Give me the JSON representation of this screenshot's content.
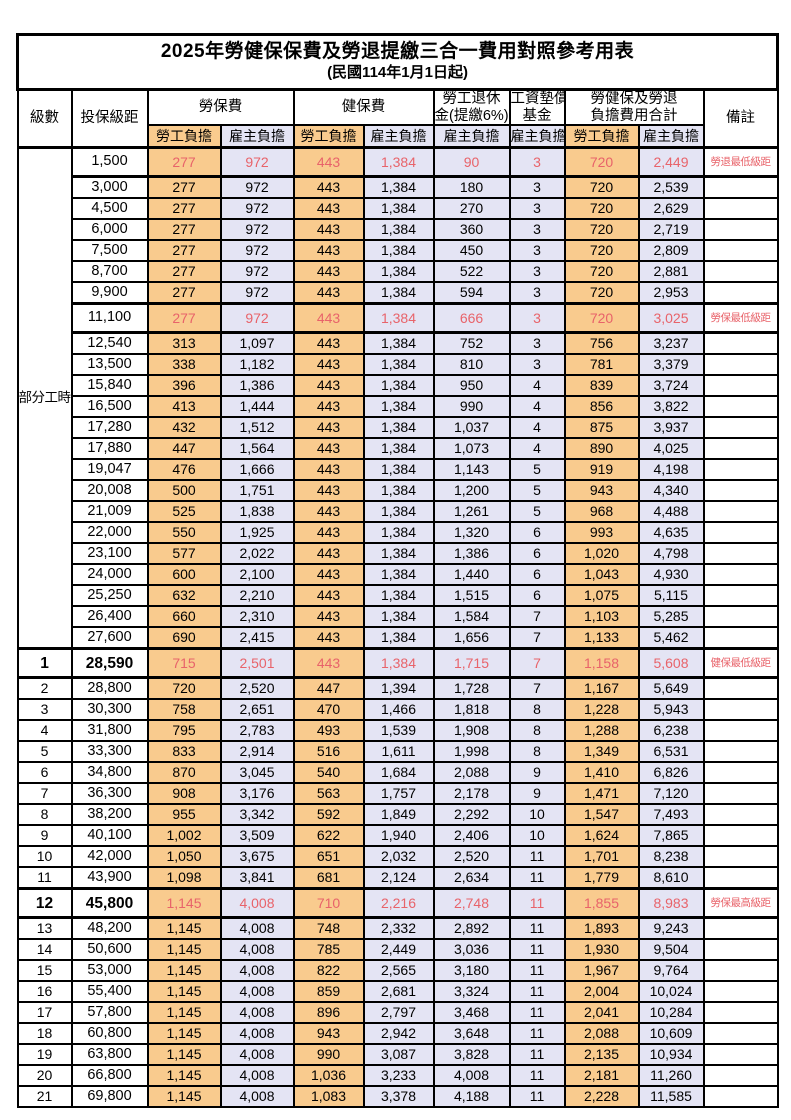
{
  "title": "2025年勞健保保費及勞退提繳三合一費用對照參考用表",
  "subtitle": "(民國114年1月1日起)",
  "columns": {
    "level": "級數",
    "bracket": "投保級距",
    "labor_insurance": "勞保費",
    "health_insurance": "健保費",
    "pension_line1": "勞工退休",
    "pension_line2": "金(提繳6%)",
    "wage_fund_line1": "工資墊償",
    "wage_fund_line2": "基金",
    "total_line1": "勞健保及勞退",
    "total_line2": "負擔費用合計",
    "note": "備註",
    "employee": "勞工負擔",
    "employer": "雇主負擔"
  },
  "part_time_label": "部分工時",
  "part_time_rowspan": 23,
  "colors": {
    "employee_bg": "#F9CB8E",
    "employer_bg": "#E4E4F4",
    "highlight_text": "#E8636A"
  },
  "rows": [
    {
      "level": "",
      "bracket": "1,500",
      "v": [
        "277",
        "972",
        "443",
        "1,384",
        "90",
        "3",
        "720",
        "2,449"
      ],
      "note": "勞退最低級距",
      "hl": true,
      "bold": false
    },
    {
      "level": "",
      "bracket": "3,000",
      "v": [
        "277",
        "972",
        "443",
        "1,384",
        "180",
        "3",
        "720",
        "2,539"
      ],
      "note": "",
      "hl": false,
      "bold": false
    },
    {
      "level": "",
      "bracket": "4,500",
      "v": [
        "277",
        "972",
        "443",
        "1,384",
        "270",
        "3",
        "720",
        "2,629"
      ],
      "note": "",
      "hl": false,
      "bold": false
    },
    {
      "level": "",
      "bracket": "6,000",
      "v": [
        "277",
        "972",
        "443",
        "1,384",
        "360",
        "3",
        "720",
        "2,719"
      ],
      "note": "",
      "hl": false,
      "bold": false
    },
    {
      "level": "",
      "bracket": "7,500",
      "v": [
        "277",
        "972",
        "443",
        "1,384",
        "450",
        "3",
        "720",
        "2,809"
      ],
      "note": "",
      "hl": false,
      "bold": false
    },
    {
      "level": "",
      "bracket": "8,700",
      "v": [
        "277",
        "972",
        "443",
        "1,384",
        "522",
        "3",
        "720",
        "2,881"
      ],
      "note": "",
      "hl": false,
      "bold": false
    },
    {
      "level": "",
      "bracket": "9,900",
      "v": [
        "277",
        "972",
        "443",
        "1,384",
        "594",
        "3",
        "720",
        "2,953"
      ],
      "note": "",
      "hl": false,
      "bold": false
    },
    {
      "level": "",
      "bracket": "11,100",
      "v": [
        "277",
        "972",
        "443",
        "1,384",
        "666",
        "3",
        "720",
        "3,025"
      ],
      "note": "勞保最低級距",
      "hl": true,
      "bold": false
    },
    {
      "level": "",
      "bracket": "12,540",
      "v": [
        "313",
        "1,097",
        "443",
        "1,384",
        "752",
        "3",
        "756",
        "3,237"
      ],
      "note": "",
      "hl": false,
      "bold": false
    },
    {
      "level": "",
      "bracket": "13,500",
      "v": [
        "338",
        "1,182",
        "443",
        "1,384",
        "810",
        "3",
        "781",
        "3,379"
      ],
      "note": "",
      "hl": false,
      "bold": false
    },
    {
      "level": "",
      "bracket": "15,840",
      "v": [
        "396",
        "1,386",
        "443",
        "1,384",
        "950",
        "4",
        "839",
        "3,724"
      ],
      "note": "",
      "hl": false,
      "bold": false
    },
    {
      "level": "",
      "bracket": "16,500",
      "v": [
        "413",
        "1,444",
        "443",
        "1,384",
        "990",
        "4",
        "856",
        "3,822"
      ],
      "note": "",
      "hl": false,
      "bold": false
    },
    {
      "level": "",
      "bracket": "17,280",
      "v": [
        "432",
        "1,512",
        "443",
        "1,384",
        "1,037",
        "4",
        "875",
        "3,937"
      ],
      "note": "",
      "hl": false,
      "bold": false
    },
    {
      "level": "",
      "bracket": "17,880",
      "v": [
        "447",
        "1,564",
        "443",
        "1,384",
        "1,073",
        "4",
        "890",
        "4,025"
      ],
      "note": "",
      "hl": false,
      "bold": false
    },
    {
      "level": "",
      "bracket": "19,047",
      "v": [
        "476",
        "1,666",
        "443",
        "1,384",
        "1,143",
        "5",
        "919",
        "4,198"
      ],
      "note": "",
      "hl": false,
      "bold": false
    },
    {
      "level": "",
      "bracket": "20,008",
      "v": [
        "500",
        "1,751",
        "443",
        "1,384",
        "1,200",
        "5",
        "943",
        "4,340"
      ],
      "note": "",
      "hl": false,
      "bold": false
    },
    {
      "level": "",
      "bracket": "21,009",
      "v": [
        "525",
        "1,838",
        "443",
        "1,384",
        "1,261",
        "5",
        "968",
        "4,488"
      ],
      "note": "",
      "hl": false,
      "bold": false
    },
    {
      "level": "",
      "bracket": "22,000",
      "v": [
        "550",
        "1,925",
        "443",
        "1,384",
        "1,320",
        "6",
        "993",
        "4,635"
      ],
      "note": "",
      "hl": false,
      "bold": false
    },
    {
      "level": "",
      "bracket": "23,100",
      "v": [
        "577",
        "2,022",
        "443",
        "1,384",
        "1,386",
        "6",
        "1,020",
        "4,798"
      ],
      "note": "",
      "hl": false,
      "bold": false
    },
    {
      "level": "",
      "bracket": "24,000",
      "v": [
        "600",
        "2,100",
        "443",
        "1,384",
        "1,440",
        "6",
        "1,043",
        "4,930"
      ],
      "note": "",
      "hl": false,
      "bold": false
    },
    {
      "level": "",
      "bracket": "25,250",
      "v": [
        "632",
        "2,210",
        "443",
        "1,384",
        "1,515",
        "6",
        "1,075",
        "5,115"
      ],
      "note": "",
      "hl": false,
      "bold": false
    },
    {
      "level": "",
      "bracket": "26,400",
      "v": [
        "660",
        "2,310",
        "443",
        "1,384",
        "1,584",
        "7",
        "1,103",
        "5,285"
      ],
      "note": "",
      "hl": false,
      "bold": false
    },
    {
      "level": "",
      "bracket": "27,600",
      "v": [
        "690",
        "2,415",
        "443",
        "1,384",
        "1,656",
        "7",
        "1,133",
        "5,462"
      ],
      "note": "",
      "hl": false,
      "bold": false
    },
    {
      "level": "1",
      "bracket": "28,590",
      "v": [
        "715",
        "2,501",
        "443",
        "1,384",
        "1,715",
        "7",
        "1,158",
        "5,608"
      ],
      "note": "健保最低級距",
      "hl": true,
      "bold": true
    },
    {
      "level": "2",
      "bracket": "28,800",
      "v": [
        "720",
        "2,520",
        "447",
        "1,394",
        "1,728",
        "7",
        "1,167",
        "5,649"
      ],
      "note": "",
      "hl": false,
      "bold": false
    },
    {
      "level": "3",
      "bracket": "30,300",
      "v": [
        "758",
        "2,651",
        "470",
        "1,466",
        "1,818",
        "8",
        "1,228",
        "5,943"
      ],
      "note": "",
      "hl": false,
      "bold": false
    },
    {
      "level": "4",
      "bracket": "31,800",
      "v": [
        "795",
        "2,783",
        "493",
        "1,539",
        "1,908",
        "8",
        "1,288",
        "6,238"
      ],
      "note": "",
      "hl": false,
      "bold": false
    },
    {
      "level": "5",
      "bracket": "33,300",
      "v": [
        "833",
        "2,914",
        "516",
        "1,611",
        "1,998",
        "8",
        "1,349",
        "6,531"
      ],
      "note": "",
      "hl": false,
      "bold": false
    },
    {
      "level": "6",
      "bracket": "34,800",
      "v": [
        "870",
        "3,045",
        "540",
        "1,684",
        "2,088",
        "9",
        "1,410",
        "6,826"
      ],
      "note": "",
      "hl": false,
      "bold": false
    },
    {
      "level": "7",
      "bracket": "36,300",
      "v": [
        "908",
        "3,176",
        "563",
        "1,757",
        "2,178",
        "9",
        "1,471",
        "7,120"
      ],
      "note": "",
      "hl": false,
      "bold": false
    },
    {
      "level": "8",
      "bracket": "38,200",
      "v": [
        "955",
        "3,342",
        "592",
        "1,849",
        "2,292",
        "10",
        "1,547",
        "7,493"
      ],
      "note": "",
      "hl": false,
      "bold": false
    },
    {
      "level": "9",
      "bracket": "40,100",
      "v": [
        "1,002",
        "3,509",
        "622",
        "1,940",
        "2,406",
        "10",
        "1,624",
        "7,865"
      ],
      "note": "",
      "hl": false,
      "bold": false
    },
    {
      "level": "10",
      "bracket": "42,000",
      "v": [
        "1,050",
        "3,675",
        "651",
        "2,032",
        "2,520",
        "11",
        "1,701",
        "8,238"
      ],
      "note": "",
      "hl": false,
      "bold": false
    },
    {
      "level": "11",
      "bracket": "43,900",
      "v": [
        "1,098",
        "3,841",
        "681",
        "2,124",
        "2,634",
        "11",
        "1,779",
        "8,610"
      ],
      "note": "",
      "hl": false,
      "bold": false
    },
    {
      "level": "12",
      "bracket": "45,800",
      "v": [
        "1,145",
        "4,008",
        "710",
        "2,216",
        "2,748",
        "11",
        "1,855",
        "8,983"
      ],
      "note": "勞保最高級距",
      "hl": true,
      "bold": true
    },
    {
      "level": "13",
      "bracket": "48,200",
      "v": [
        "1,145",
        "4,008",
        "748",
        "2,332",
        "2,892",
        "11",
        "1,893",
        "9,243"
      ],
      "note": "",
      "hl": false,
      "bold": false
    },
    {
      "level": "14",
      "bracket": "50,600",
      "v": [
        "1,145",
        "4,008",
        "785",
        "2,449",
        "3,036",
        "11",
        "1,930",
        "9,504"
      ],
      "note": "",
      "hl": false,
      "bold": false
    },
    {
      "level": "15",
      "bracket": "53,000",
      "v": [
        "1,145",
        "4,008",
        "822",
        "2,565",
        "3,180",
        "11",
        "1,967",
        "9,764"
      ],
      "note": "",
      "hl": false,
      "bold": false
    },
    {
      "level": "16",
      "bracket": "55,400",
      "v": [
        "1,145",
        "4,008",
        "859",
        "2,681",
        "3,324",
        "11",
        "2,004",
        "10,024"
      ],
      "note": "",
      "hl": false,
      "bold": false
    },
    {
      "level": "17",
      "bracket": "57,800",
      "v": [
        "1,145",
        "4,008",
        "896",
        "2,797",
        "3,468",
        "11",
        "2,041",
        "10,284"
      ],
      "note": "",
      "hl": false,
      "bold": false
    },
    {
      "level": "18",
      "bracket": "60,800",
      "v": [
        "1,145",
        "4,008",
        "943",
        "2,942",
        "3,648",
        "11",
        "2,088",
        "10,609"
      ],
      "note": "",
      "hl": false,
      "bold": false
    },
    {
      "level": "19",
      "bracket": "63,800",
      "v": [
        "1,145",
        "4,008",
        "990",
        "3,087",
        "3,828",
        "11",
        "2,135",
        "10,934"
      ],
      "note": "",
      "hl": false,
      "bold": false
    },
    {
      "level": "20",
      "bracket": "66,800",
      "v": [
        "1,145",
        "4,008",
        "1,036",
        "3,233",
        "4,008",
        "11",
        "2,181",
        "11,260"
      ],
      "note": "",
      "hl": false,
      "bold": false
    },
    {
      "level": "21",
      "bracket": "69,800",
      "v": [
        "1,145",
        "4,008",
        "1,083",
        "3,378",
        "4,188",
        "11",
        "2,228",
        "11,585"
      ],
      "note": "",
      "hl": false,
      "bold": false
    }
  ]
}
